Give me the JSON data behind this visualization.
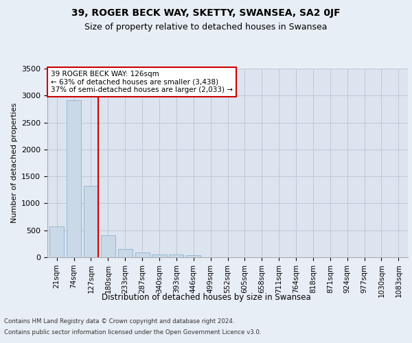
{
  "title1": "39, ROGER BECK WAY, SKETTY, SWANSEA, SA2 0JF",
  "title2": "Size of property relative to detached houses in Swansea",
  "xlabel": "Distribution of detached houses by size in Swansea",
  "ylabel": "Number of detached properties",
  "footer1": "Contains HM Land Registry data © Crown copyright and database right 2024.",
  "footer2": "Contains public sector information licensed under the Open Government Licence v3.0.",
  "annotation_line1": "39 ROGER BECK WAY: 126sqm",
  "annotation_line2": "← 63% of detached houses are smaller (3,438)",
  "annotation_line3": "37% of semi-detached houses are larger (2,033) →",
  "bar_labels": [
    "21sqm",
    "74sqm",
    "127sqm",
    "180sqm",
    "233sqm",
    "287sqm",
    "340sqm",
    "393sqm",
    "446sqm",
    "499sqm",
    "552sqm",
    "605sqm",
    "658sqm",
    "711sqm",
    "764sqm",
    "818sqm",
    "871sqm",
    "924sqm",
    "977sqm",
    "1030sqm",
    "1083sqm"
  ],
  "bar_values": [
    570,
    2920,
    1320,
    410,
    150,
    85,
    55,
    45,
    40,
    0,
    0,
    0,
    0,
    0,
    0,
    0,
    0,
    0,
    0,
    0,
    0
  ],
  "bar_color": "#c9d9e8",
  "bar_edge_color": "#7fa8c9",
  "highlight_bar_index": 2,
  "highlight_color": "#cc0000",
  "annotation_box_color": "#cc0000",
  "annotation_text_color": "#000000",
  "annotation_box_fill": "#ffffff",
  "ylim": [
    0,
    3500
  ],
  "yticks": [
    0,
    500,
    1000,
    1500,
    2000,
    2500,
    3000,
    3500
  ],
  "grid_color": "#c0c8d8",
  "bg_color": "#e8eef5",
  "plot_bg_color": "#dce4ef"
}
